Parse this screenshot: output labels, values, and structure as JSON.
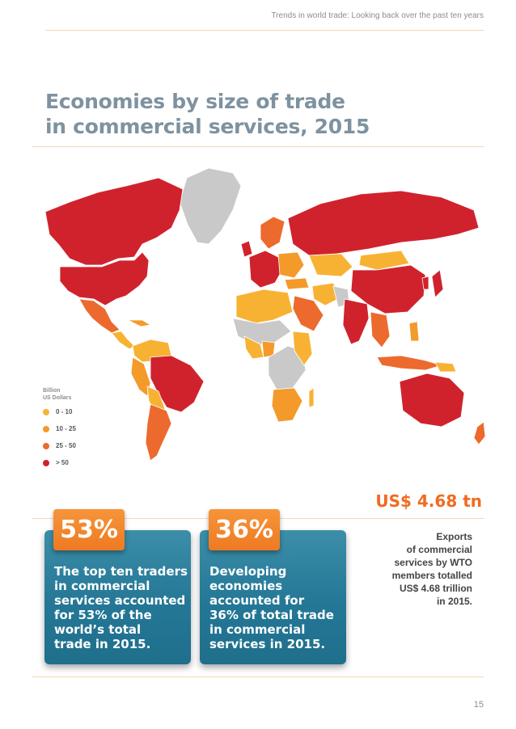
{
  "header": {
    "running_title": "Trends in world trade: Looking back over the past ten years"
  },
  "title": {
    "line1": "Economies by size of trade",
    "line2": "in commercial services, 2015"
  },
  "legend": {
    "title_line1": "Billion",
    "title_line2": "US Dollars",
    "items": [
      {
        "label": "0 - 10",
        "color": "#f8b233"
      },
      {
        "label": "10 - 25",
        "color": "#f39a2b"
      },
      {
        "label": "25 - 50",
        "color": "#ec6a2d"
      },
      {
        "label": "> 50",
        "color": "#d0222d"
      }
    ]
  },
  "map_colors": {
    "no_data": "#c9c9c9",
    "boundary": "#ffffff"
  },
  "stat": {
    "value": "US$ 4.68 tn"
  },
  "side_text": {
    "lines": [
      "Exports",
      "of commercial",
      "services by WTO",
      "members totalled",
      "US$ 4.68 trillion",
      "in 2015."
    ]
  },
  "cards": [
    {
      "badge": "53%",
      "lines": [
        "The top ten traders",
        "in commercial",
        "services accounted",
        "for 53% of the",
        "world’s total",
        "trade in 2015."
      ]
    },
    {
      "badge": "36%",
      "lines": [
        "Developing",
        "economies",
        "accounted for",
        "36% of total trade",
        "in commercial",
        "services in 2015."
      ]
    }
  ],
  "page_number": "15",
  "colors": {
    "accent_orange": "#f26a21",
    "title_grey": "#7e929f",
    "card_teal": "#247796"
  }
}
